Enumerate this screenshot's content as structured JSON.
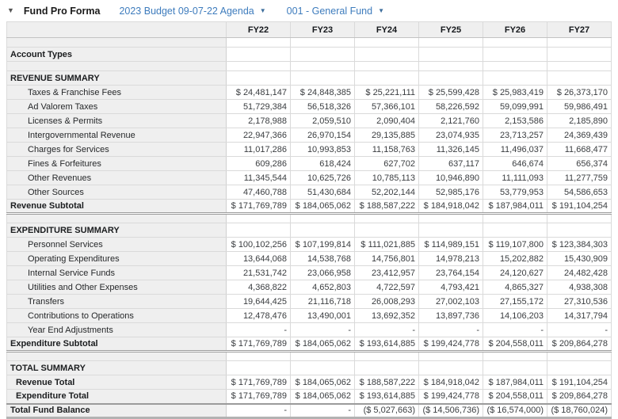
{
  "toolbar": {
    "collapse_icon": "caret-down-icon",
    "title": "Fund Pro Forma",
    "budget_selector": {
      "label": "2023 Budget 09-07-22 Agenda",
      "icon": "caret-down-icon"
    },
    "fund_selector": {
      "label": "001 - General Fund",
      "icon": "caret-down-icon"
    }
  },
  "colors": {
    "link_blue": "#3e7cbd",
    "label_column_bg": "#efefef",
    "header_bg": "#efefef",
    "grid_border": "#dadada",
    "strong_border": "#9b9b9b"
  },
  "table": {
    "columns": [
      "FY22",
      "FY23",
      "FY24",
      "FY25",
      "FY26",
      "FY27"
    ],
    "rows": [
      {
        "type": "spacer",
        "label": "",
        "values": [
          "",
          "",
          "",
          "",
          "",
          ""
        ]
      },
      {
        "type": "section",
        "label": "Account Types",
        "values": [
          "",
          "",
          "",
          "",
          "",
          ""
        ]
      },
      {
        "type": "spacer",
        "label": "",
        "values": [
          "",
          "",
          "",
          "",
          "",
          ""
        ]
      },
      {
        "type": "section",
        "label": "REVENUE SUMMARY",
        "values": [
          "",
          "",
          "",
          "",
          "",
          ""
        ]
      },
      {
        "type": "detail",
        "label": "Taxes & Franchise Fees",
        "values": [
          "$ 24,481,147",
          "$ 24,848,385",
          "$ 25,221,111",
          "$ 25,599,428",
          "$ 25,983,419",
          "$ 26,373,170"
        ]
      },
      {
        "type": "detail",
        "label": "Ad Valorem Taxes",
        "values": [
          "51,729,384",
          "56,518,326",
          "57,366,101",
          "58,226,592",
          "59,099,991",
          "59,986,491"
        ]
      },
      {
        "type": "detail",
        "label": "Licenses & Permits",
        "values": [
          "2,178,988",
          "2,059,510",
          "2,090,404",
          "2,121,760",
          "2,153,586",
          "2,185,890"
        ]
      },
      {
        "type": "detail",
        "label": "Intergovernmental Revenue",
        "values": [
          "22,947,366",
          "26,970,154",
          "29,135,885",
          "23,074,935",
          "23,713,257",
          "24,369,439"
        ]
      },
      {
        "type": "detail",
        "label": "Charges for Services",
        "values": [
          "11,017,286",
          "10,993,853",
          "11,158,763",
          "11,326,145",
          "11,496,037",
          "11,668,477"
        ]
      },
      {
        "type": "detail",
        "label": "Fines & Forfeitures",
        "values": [
          "609,286",
          "618,424",
          "627,702",
          "637,117",
          "646,674",
          "656,374"
        ]
      },
      {
        "type": "detail",
        "label": "Other Revenues",
        "values": [
          "11,345,544",
          "10,625,726",
          "10,785,113",
          "10,946,890",
          "11,111,093",
          "11,277,759"
        ]
      },
      {
        "type": "detail",
        "label": "Other Sources",
        "values": [
          "47,460,788",
          "51,430,684",
          "52,202,144",
          "52,985,176",
          "53,779,953",
          "54,586,653"
        ]
      },
      {
        "type": "subtotal",
        "label": "Revenue Subtotal",
        "values": [
          "$ 171,769,789",
          "$ 184,065,062",
          "$ 188,587,222",
          "$ 184,918,042",
          "$ 187,984,011",
          "$ 191,104,254"
        ]
      },
      {
        "type": "spacer",
        "label": "",
        "values": [
          "",
          "",
          "",
          "",
          "",
          ""
        ]
      },
      {
        "type": "section",
        "label": "EXPENDITURE SUMMARY",
        "values": [
          "",
          "",
          "",
          "",
          "",
          ""
        ]
      },
      {
        "type": "detail",
        "label": "Personnel Services",
        "values": [
          "$ 100,102,256",
          "$ 107,199,814",
          "$ 111,021,885",
          "$ 114,989,151",
          "$ 119,107,800",
          "$ 123,384,303"
        ]
      },
      {
        "type": "detail",
        "label": "Operating Expenditures",
        "values": [
          "13,644,068",
          "14,538,768",
          "14,756,801",
          "14,978,213",
          "15,202,882",
          "15,430,909"
        ]
      },
      {
        "type": "detail",
        "label": "Internal Service Funds",
        "values": [
          "21,531,742",
          "23,066,958",
          "23,412,957",
          "23,764,154",
          "24,120,627",
          "24,482,428"
        ]
      },
      {
        "type": "detail",
        "label": "Utilities and Other Expenses",
        "values": [
          "4,368,822",
          "4,652,803",
          "4,722,597",
          "4,793,421",
          "4,865,327",
          "4,938,308"
        ]
      },
      {
        "type": "detail",
        "label": "Transfers",
        "values": [
          "19,644,425",
          "21,116,718",
          "26,008,293",
          "27,002,103",
          "27,155,172",
          "27,310,536"
        ]
      },
      {
        "type": "detail",
        "label": "Contributions to Operations",
        "values": [
          "12,478,476",
          "13,490,001",
          "13,692,352",
          "13,897,736",
          "14,106,203",
          "14,317,794"
        ]
      },
      {
        "type": "detail",
        "label": "Year End Adjustments",
        "values": [
          "-",
          "-",
          "-",
          "-",
          "-",
          "-"
        ]
      },
      {
        "type": "subtotal",
        "label": "Expenditure Subtotal",
        "values": [
          "$ 171,769,789",
          "$ 184,065,062",
          "$ 193,614,885",
          "$ 199,424,778",
          "$ 204,558,011",
          "$ 209,864,278"
        ]
      },
      {
        "type": "spacer",
        "label": "",
        "values": [
          "",
          "",
          "",
          "",
          "",
          ""
        ]
      },
      {
        "type": "section",
        "label": "TOTAL SUMMARY",
        "values": [
          "",
          "",
          "",
          "",
          "",
          ""
        ]
      },
      {
        "type": "total-first",
        "label": "Revenue Total",
        "values": [
          "$ 171,769,789",
          "$ 184,065,062",
          "$ 188,587,222",
          "$ 184,918,042",
          "$ 187,984,011",
          "$ 191,104,254"
        ]
      },
      {
        "type": "total-last",
        "label": "Expenditure Total",
        "values": [
          "$ 171,769,789",
          "$ 184,065,062",
          "$ 193,614,885",
          "$ 199,424,778",
          "$ 204,558,011",
          "$ 209,864,278"
        ]
      },
      {
        "type": "grandtotal",
        "label": "Total Fund Balance",
        "values": [
          "-",
          "-",
          "($ 5,027,663)",
          "($ 14,506,736)",
          "($ 16,574,000)",
          "($ 18,760,024)"
        ]
      }
    ]
  }
}
